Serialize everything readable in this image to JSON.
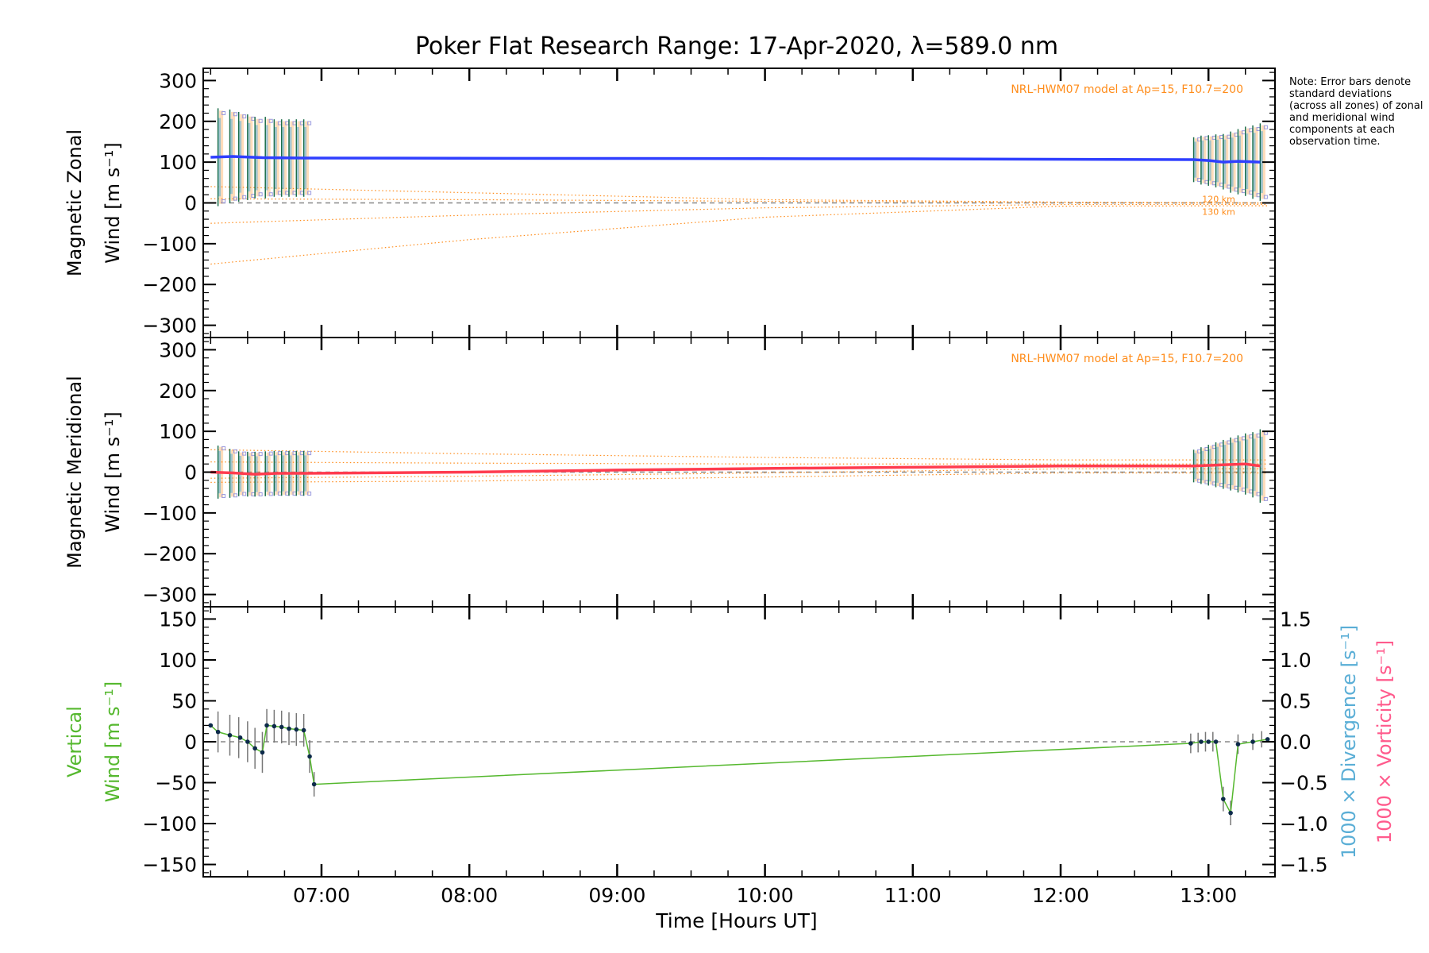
{
  "title": "Poker Flat Research Range: 17-Apr-2020, λ=589.0 nm",
  "note": "Note: Error bars denote standard deviations (across all zones) of zonal and meridional wind components at each observation time.",
  "colors": {
    "zonal": "#2f3fff",
    "meridional": "#ff3c4f",
    "vertical": "#55b82e",
    "model": "#ff8c1a",
    "divergence": "#5aaed6",
    "vorticity": "#ff5a8c",
    "dashed": "#888888",
    "dots": "#0d2a4a"
  },
  "chart_data": [
    {
      "type": "line",
      "panel": "zonal",
      "ylabel_line1": "Magnetic Zonal",
      "ylabel_line2": "Wind",
      "ylabel_units": "[m s⁻¹]",
      "ylim": [
        -330,
        330
      ],
      "yticks": [
        -300,
        -200,
        -100,
        0,
        100,
        200,
        300
      ],
      "model_label": "NRL-HWM07 model at Ap=15, F10.7=200",
      "model_alt_labels": [
        "120 km",
        "130 km"
      ],
      "series": [
        {
          "role": "main",
          "x": [
            6.25,
            6.4,
            6.6,
            6.9,
            9.0,
            11.0,
            12.9,
            13.0,
            13.1,
            13.2,
            13.35
          ],
          "y": [
            112,
            114,
            111,
            110,
            109,
            108,
            106,
            104,
            100,
            102,
            100
          ]
        },
        {
          "role": "model",
          "x": [
            6.25,
            8.0,
            10.0,
            12.0,
            13.4
          ],
          "y": [
            40,
            25,
            8,
            2,
            0
          ]
        },
        {
          "role": "model",
          "x": [
            6.25,
            8.0,
            10.0,
            12.0,
            13.4
          ],
          "y": [
            10,
            8,
            4,
            1,
            -1
          ]
        },
        {
          "role": "model",
          "x": [
            6.25,
            8.0,
            10.0,
            12.0,
            13.4
          ],
          "y": [
            -50,
            -30,
            -12,
            -4,
            -4
          ]
        },
        {
          "role": "model",
          "x": [
            6.25,
            8.0,
            10.0,
            12.0,
            13.4
          ],
          "y": [
            -150,
            -90,
            -35,
            -8,
            -7
          ]
        }
      ],
      "error_bars": {
        "x": [
          6.3,
          6.38,
          6.44,
          6.5,
          6.55,
          6.62,
          6.68,
          6.73,
          6.78,
          6.83,
          6.88,
          12.9,
          12.95,
          13.0,
          13.05,
          13.1,
          13.15,
          13.2,
          13.25,
          13.3,
          13.35
        ],
        "center": [
          112,
          114,
          113,
          112,
          111,
          111,
          110,
          110,
          110,
          110,
          110,
          106,
          105,
          104,
          103,
          101,
          100,
          101,
          102,
          100,
          100
        ],
        "std": [
          120,
          115,
          110,
          105,
          100,
          100,
          95,
          95,
          95,
          95,
          95,
          55,
          60,
          62,
          65,
          68,
          75,
          80,
          85,
          90,
          95
        ]
      }
    },
    {
      "type": "line",
      "panel": "meridional",
      "ylabel_line1": "Magnetic Meridional",
      "ylabel_line2": "Wind",
      "ylabel_units": "[m s⁻¹]",
      "ylim": [
        -330,
        330
      ],
      "yticks": [
        -300,
        -200,
        -100,
        0,
        100,
        200,
        300
      ],
      "model_label": "NRL-HWM07 model at Ap=15, F10.7=200",
      "series": [
        {
          "role": "main",
          "x": [
            6.25,
            6.4,
            6.55,
            6.7,
            6.9,
            8.0,
            9.0,
            10.0,
            11.0,
            12.0,
            12.9,
            13.1,
            13.25,
            13.35
          ],
          "y": [
            0,
            -2,
            -5,
            -3,
            -3,
            0,
            5,
            9,
            12,
            15,
            15,
            18,
            20,
            15
          ]
        },
        {
          "role": "model",
          "x": [
            6.25,
            8.0,
            10.0,
            12.0,
            13.4
          ],
          "y": [
            55,
            45,
            36,
            30,
            30
          ]
        },
        {
          "role": "model",
          "x": [
            6.25,
            8.0,
            10.0,
            12.0,
            13.4
          ],
          "y": [
            25,
            22,
            20,
            20,
            20
          ]
        },
        {
          "role": "model",
          "x": [
            6.25,
            8.0,
            10.0,
            12.0,
            13.4
          ],
          "y": [
            -15,
            -10,
            -2,
            8,
            8
          ]
        },
        {
          "role": "model",
          "x": [
            6.25,
            8.0,
            10.0,
            12.0,
            13.4
          ],
          "y": [
            -25,
            -22,
            -12,
            -2,
            -2
          ]
        }
      ],
      "error_bars": {
        "x": [
          6.3,
          6.38,
          6.44,
          6.5,
          6.55,
          6.62,
          6.68,
          6.73,
          6.78,
          6.83,
          6.88,
          12.9,
          12.95,
          13.0,
          13.05,
          13.1,
          13.15,
          13.2,
          13.25,
          13.3,
          13.35
        ],
        "center": [
          0,
          -3,
          -4,
          -5,
          -5,
          -4,
          -3,
          -3,
          -3,
          -3,
          -3,
          15,
          16,
          17,
          18,
          19,
          20,
          20,
          20,
          18,
          15
        ],
        "std": [
          65,
          60,
          55,
          55,
          55,
          55,
          55,
          55,
          55,
          55,
          55,
          40,
          45,
          50,
          55,
          60,
          65,
          70,
          75,
          80,
          90
        ]
      }
    },
    {
      "type": "line",
      "panel": "vertical",
      "ylabel_line1": "Vertical",
      "ylabel_line2": "Wind",
      "ylabel_units": "[m s⁻¹]",
      "ylim": [
        -165,
        165
      ],
      "yticks": [
        -150,
        -100,
        -50,
        0,
        50,
        100,
        150
      ],
      "y2lim": [
        -1.65,
        1.65
      ],
      "y2ticks": [
        -1.5,
        -1.0,
        -0.5,
        0.0,
        0.5,
        1.0,
        1.5
      ],
      "y2tick_labels": [
        "−1.5",
        "−1.0",
        "−0.5",
        "0.0",
        "0.5",
        "1.0",
        "1.5"
      ],
      "y2label_divergence": "1000 × Divergence [s⁻¹]",
      "y2label_vorticity": "1000 × Vorticity [s⁻¹]",
      "series": [
        {
          "role": "main",
          "x": [
            6.25,
            6.3,
            6.38,
            6.45,
            6.5,
            6.55,
            6.6,
            6.63,
            6.68,
            6.73,
            6.78,
            6.83,
            6.88,
            6.92,
            6.95,
            12.88,
            12.95,
            13.0,
            13.05,
            13.1,
            13.15,
            13.2,
            13.3,
            13.4
          ],
          "y": [
            20,
            12,
            8,
            5,
            0,
            -8,
            -13,
            20,
            19,
            18,
            16,
            15,
            14,
            -18,
            -52,
            -2,
            0,
            0,
            0,
            -70,
            -87,
            -3,
            0,
            3
          ]
        }
      ],
      "error_bars": {
        "x": [
          6.3,
          6.38,
          6.44,
          6.5,
          6.55,
          6.6,
          6.63,
          6.68,
          6.73,
          6.78,
          6.83,
          6.88,
          6.92,
          6.95,
          12.88,
          12.93,
          12.98,
          13.03,
          13.1,
          13.15,
          13.2,
          13.3,
          13.36
        ],
        "center": [
          12,
          8,
          5,
          0,
          -8,
          -13,
          20,
          19,
          18,
          16,
          15,
          14,
          -18,
          -52,
          -2,
          -1,
          0,
          0,
          -70,
          -87,
          -3,
          0,
          3
        ],
        "std": [
          25,
          25,
          25,
          25,
          25,
          25,
          20,
          20,
          20,
          20,
          20,
          20,
          20,
          15,
          12,
          12,
          12,
          12,
          15,
          15,
          12,
          10,
          10
        ]
      }
    }
  ],
  "x_axis": {
    "xlim": [
      6.2,
      13.45
    ],
    "xlabel": "Time [Hours UT]",
    "ticks": [
      7,
      8,
      9,
      10,
      11,
      12,
      13
    ],
    "tick_labels": [
      "07:00",
      "08:00",
      "09:00",
      "10:00",
      "11:00",
      "12:00",
      "13:00"
    ]
  }
}
